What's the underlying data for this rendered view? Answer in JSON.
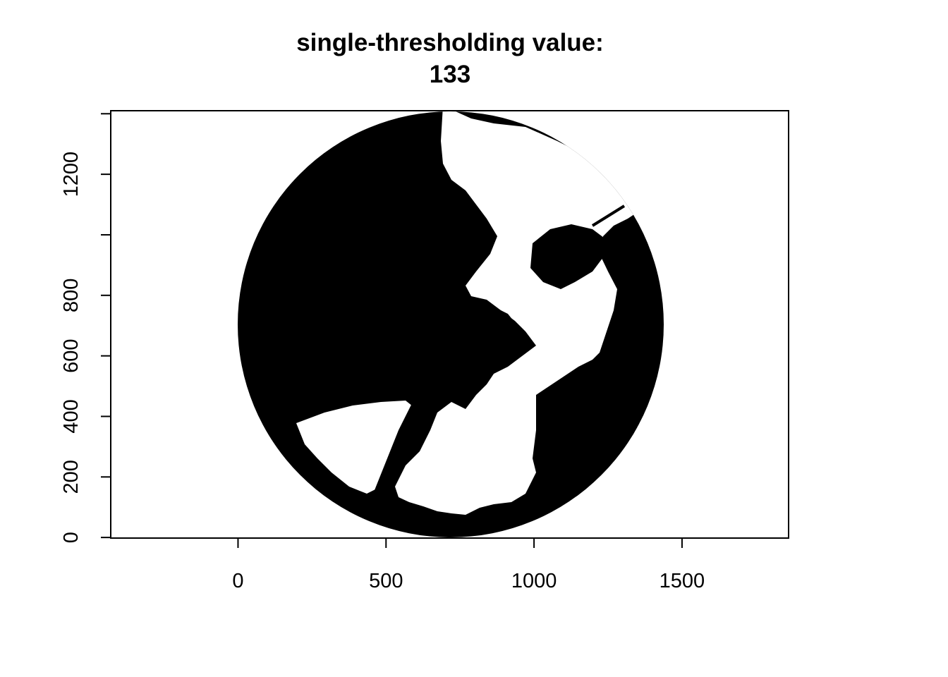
{
  "chart_data": {
    "type": "heatmap",
    "title_line1": "single-thresholding value:",
    "title_line2": "133",
    "xlabel": "",
    "ylabel": "",
    "xlim": [
      -430,
      1860
    ],
    "ylim": [
      -2,
      1410
    ],
    "x_ticks": [
      0,
      500,
      1000,
      1500
    ],
    "x_tick_labels": [
      "0",
      "500",
      "1000",
      "1500"
    ],
    "y_ticks": [
      0,
      200,
      400,
      600,
      800,
      1000,
      1200,
      1400
    ],
    "y_tick_labels": [
      "0",
      "200",
      "400",
      "600",
      "800",
      "",
      "1200",
      ""
    ],
    "image": {
      "description_values": "binary fisheye canopy image thresholded at 133",
      "x_range": [
        0,
        1440
      ],
      "y_range": [
        0,
        1440
      ],
      "circle_center": [
        720,
        720
      ],
      "circle_radius": 720,
      "colors": {
        "below_threshold": "#000000",
        "above_threshold": "#ffffff"
      }
    },
    "grid": false,
    "legend": "none"
  }
}
